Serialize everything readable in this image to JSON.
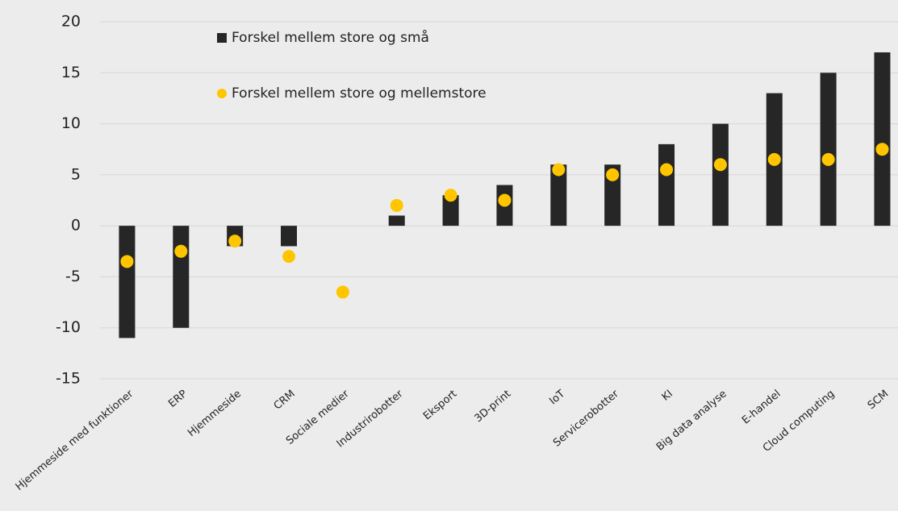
{
  "chart_data": {
    "type": "bar_dot",
    "categories": [
      "Hjemmeside med funktioner",
      "ERP",
      "Hjemmeside",
      "CRM",
      "Sociale medier",
      "Industrirobotter",
      "Eksport",
      "3D-print",
      "IoT",
      "Servicerobotter",
      "KI",
      "Big data analyse",
      "E-handel",
      "Cloud computing",
      "SCM"
    ],
    "series": [
      {
        "name": "Forskel mellem store og små",
        "color": "#262626",
        "kind": "bar",
        "values": [
          -11,
          -10,
          -2,
          -2,
          0,
          1,
          3,
          4,
          6,
          6,
          8,
          10,
          13,
          15,
          17
        ]
      },
      {
        "name": "Forskel mellem store og mellemstore",
        "color": "#ffc600",
        "kind": "dot",
        "values": [
          -3.5,
          -2.5,
          -1.5,
          -3,
          -6.5,
          2,
          3,
          2.5,
          5.5,
          5,
          5.5,
          6,
          6.5,
          6.5,
          7.5
        ]
      }
    ],
    "ylim": [
      -15,
      20
    ],
    "yticks": [
      -15,
      -10,
      -5,
      0,
      5,
      10,
      15,
      20
    ],
    "grid": true
  }
}
